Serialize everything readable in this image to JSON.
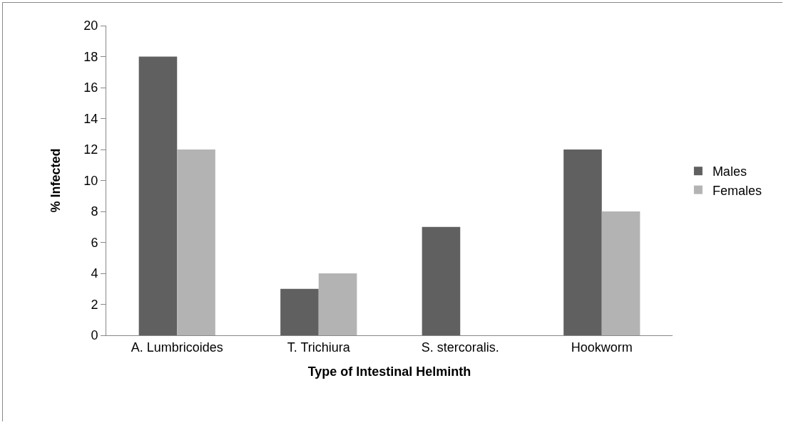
{
  "chart_data": {
    "type": "bar",
    "xlabel": "Type of Intestinal Helminth",
    "ylabel": "% Infected",
    "categories": [
      "A. Lumbricoides",
      "T. Trichiura",
      "S. stercoralis.",
      "Hookworm"
    ],
    "series": [
      {
        "name": "Males",
        "color": "#606060",
        "values": [
          18,
          3,
          7,
          12
        ]
      },
      {
        "name": "Females",
        "color": "#b3b3b3",
        "values": [
          12,
          4,
          0,
          8
        ]
      }
    ],
    "ylim": [
      0,
      20
    ],
    "yticks": [
      0,
      2,
      4,
      6,
      8,
      10,
      12,
      14,
      16,
      18,
      20
    ],
    "grid": false,
    "legend": "right"
  }
}
